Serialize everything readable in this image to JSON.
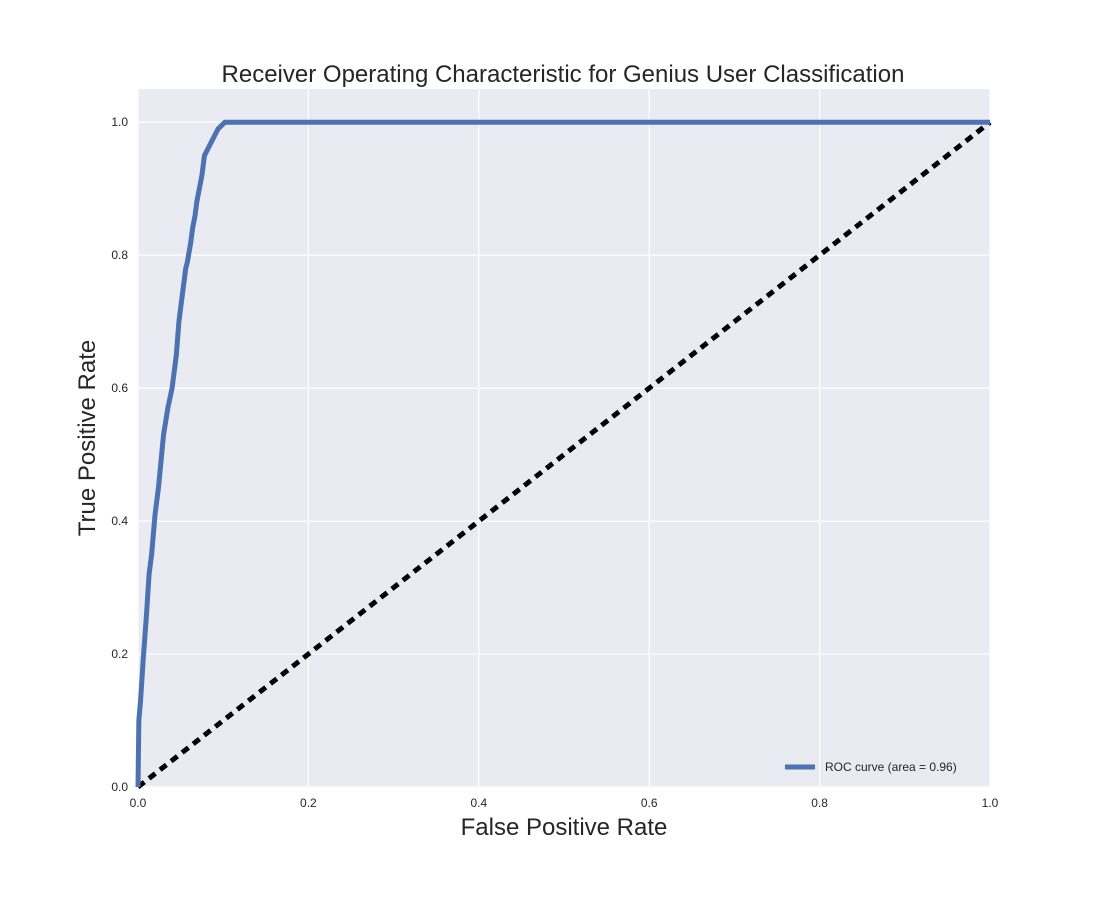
{
  "chart_data": {
    "type": "line",
    "title": "Receiver Operating Characteristic for Genius User Classification",
    "xlabel": "False Positive Rate",
    "ylabel": "True Positive Rate",
    "xlim": [
      0.0,
      1.0
    ],
    "ylim": [
      0.0,
      1.05
    ],
    "xticks": [
      0.0,
      0.2,
      0.4,
      0.6,
      0.8,
      1.0
    ],
    "yticks": [
      0.0,
      0.2,
      0.4,
      0.6,
      0.8,
      1.0
    ],
    "xtick_labels": [
      "0.0",
      "0.2",
      "0.4",
      "0.6",
      "0.8",
      "1.0"
    ],
    "ytick_labels": [
      "0.0",
      "0.2",
      "0.4",
      "0.6",
      "0.8",
      "1.0"
    ],
    "grid": true,
    "legend_position": "lower-right",
    "series": [
      {
        "name": "ROC curve (area = 0.96)",
        "color": "#4c72b0",
        "style": "solid",
        "x": [
          0.0,
          0.001,
          0.003,
          0.006,
          0.01,
          0.013,
          0.016,
          0.02,
          0.024,
          0.027,
          0.03,
          0.035,
          0.04,
          0.045,
          0.048,
          0.05,
          0.053,
          0.056,
          0.058,
          0.062,
          0.064,
          0.067,
          0.069,
          0.072,
          0.075,
          0.078,
          0.082,
          0.086,
          0.09,
          0.094,
          0.098,
          0.102,
          0.106,
          1.0
        ],
        "y": [
          0.0,
          0.1,
          0.13,
          0.19,
          0.26,
          0.32,
          0.35,
          0.41,
          0.45,
          0.49,
          0.53,
          0.57,
          0.6,
          0.65,
          0.7,
          0.72,
          0.75,
          0.78,
          0.79,
          0.82,
          0.84,
          0.86,
          0.88,
          0.9,
          0.92,
          0.95,
          0.96,
          0.97,
          0.98,
          0.99,
          0.995,
          1.0,
          1.0,
          1.0
        ]
      },
      {
        "name": "",
        "color": "#000000",
        "style": "dashed",
        "x": [
          0.0,
          1.0
        ],
        "y": [
          0.0,
          1.0
        ]
      }
    ],
    "legend": [
      {
        "label": "ROC curve (area = 0.96)",
        "color": "#4c72b0"
      }
    ],
    "colors": {
      "plot_background": "#eaeaf2",
      "grid": "#ffffff",
      "text": "#262626"
    }
  }
}
